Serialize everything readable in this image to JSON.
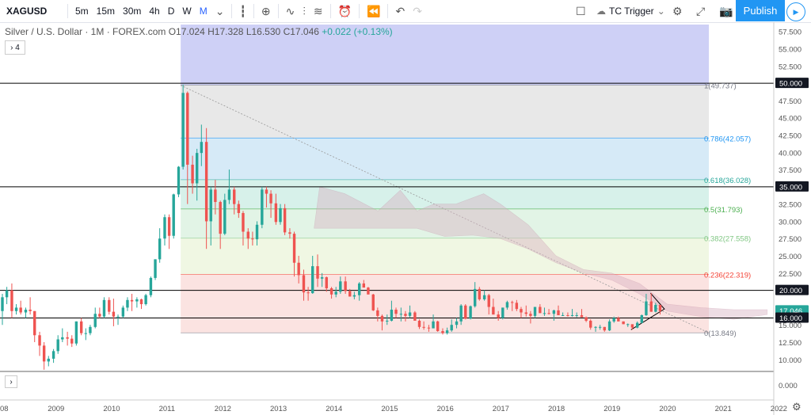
{
  "toolbar": {
    "symbol": "XAGUSD",
    "intervals": [
      "5m",
      "15m",
      "30m",
      "4h",
      "D",
      "W",
      "M"
    ],
    "active_interval": "M",
    "tc_trigger": "TC Trigger",
    "publish": "Publish"
  },
  "legend": {
    "title": "Silver / U.S. Dollar · 1M · FOREX.com",
    "o": "O17.024",
    "h": "H17.328",
    "l": "L16.530",
    "c": "C17.046",
    "change": "+0.022 (+0.13%)"
  },
  "collapse_label": "4",
  "colors": {
    "up": "#26a69a",
    "down": "#ef5350",
    "blue": "#2962ff"
  },
  "chart_data": {
    "type": "candlestick",
    "x_start_year": 2008,
    "x_ticks": [
      "08",
      "2009",
      "2010",
      "2011",
      "2012",
      "2013",
      "2014",
      "2015",
      "2016",
      "2017",
      "2018",
      "2019",
      "2020",
      "2021",
      "2022"
    ],
    "y_ticks": [
      "57.500",
      "55.000",
      "52.500",
      "50.000",
      "47.500",
      "45.000",
      "42.500",
      "40.000",
      "37.500",
      "35.000",
      "32.500",
      "30.000",
      "27.500",
      "25.000",
      "22.500",
      "20.000",
      "17.500",
      "15.000",
      "12.500",
      "10.000"
    ],
    "y_range": [
      9,
      58.5
    ],
    "price_badges": [
      {
        "label": "50.000",
        "value": 50,
        "style": "dark"
      },
      {
        "label": "35.000",
        "value": 35,
        "style": "dark"
      },
      {
        "label": "20.000",
        "value": 20,
        "style": "dark"
      },
      {
        "label": "17.046",
        "value": 17.046,
        "style": "teal"
      },
      {
        "label": "16.000",
        "value": 16,
        "style": "dark"
      }
    ],
    "horizontal_lines": [
      50,
      35,
      20,
      16
    ],
    "fibonacci": [
      {
        "label": "1(49.737)",
        "value": 49.737,
        "color": "#787b86"
      },
      {
        "label": "0.786(42.057)",
        "value": 42.057,
        "color": "#2196f3"
      },
      {
        "label": "0.618(36.028)",
        "value": 36.028,
        "color": "#26a69a"
      },
      {
        "label": "0.5(31.793)",
        "value": 31.793,
        "color": "#4caf50"
      },
      {
        "label": "0.382(27.558)",
        "value": 27.558,
        "color": "#81c784"
      },
      {
        "label": "0.236(22.319)",
        "value": 22.319,
        "color": "#f44336"
      },
      {
        "label": "0(13.849)",
        "value": 13.849,
        "color": "#787b86"
      }
    ],
    "lower_pane_label": "0.000",
    "candles": [
      [
        2008.0,
        17,
        19.5,
        15,
        19
      ],
      [
        2008.08,
        19,
        20.5,
        18,
        20
      ],
      [
        2008.17,
        20,
        21,
        16,
        17
      ],
      [
        2008.25,
        17,
        18,
        16.5,
        17.5
      ],
      [
        2008.33,
        17.5,
        18.5,
        16.5,
        16.8
      ],
      [
        2008.42,
        16.8,
        17.5,
        16,
        17.2
      ],
      [
        2008.5,
        17.2,
        19,
        16.5,
        17
      ],
      [
        2008.58,
        17,
        17,
        12.5,
        13.5
      ],
      [
        2008.67,
        13.5,
        14,
        10.5,
        12
      ],
      [
        2008.75,
        12,
        12.5,
        8.5,
        9.7
      ],
      [
        2008.83,
        9.7,
        10.5,
        9,
        10.1
      ],
      [
        2008.92,
        10.1,
        11.5,
        9.5,
        11.2
      ],
      [
        2009.0,
        11.2,
        13.5,
        10.8,
        12.9
      ],
      [
        2009.08,
        12.9,
        14.5,
        12.5,
        13.2
      ],
      [
        2009.17,
        13.2,
        14,
        12,
        13
      ],
      [
        2009.25,
        13,
        13.5,
        11.8,
        12.3
      ],
      [
        2009.33,
        12.3,
        15.5,
        12,
        15.5
      ],
      [
        2009.42,
        15.5,
        16,
        13.5,
        13.8
      ],
      [
        2009.5,
        13.8,
        14.5,
        12.8,
        13.8
      ],
      [
        2009.58,
        13.8,
        15,
        13.5,
        14.7
      ],
      [
        2009.67,
        14.7,
        17.5,
        14.5,
        16.6
      ],
      [
        2009.75,
        16.6,
        17.5,
        16,
        16.2
      ],
      [
        2009.83,
        16.2,
        19,
        16,
        18.6
      ],
      [
        2009.92,
        18.6,
        19,
        16.5,
        16.9
      ],
      [
        2010.0,
        16.9,
        18.8,
        14.8,
        16.2
      ],
      [
        2010.08,
        16.2,
        16.5,
        15,
        16.2
      ],
      [
        2010.17,
        16.2,
        17.8,
        16,
        17.5
      ],
      [
        2010.25,
        17.5,
        19,
        17,
        18.6
      ],
      [
        2010.33,
        18.6,
        19.5,
        17,
        18.4
      ],
      [
        2010.42,
        18.4,
        19,
        17.5,
        18.7
      ],
      [
        2010.5,
        18.7,
        18.8,
        17.3,
        18
      ],
      [
        2010.58,
        18,
        19.5,
        17.8,
        19.3
      ],
      [
        2010.67,
        19.3,
        22,
        19,
        21.8
      ],
      [
        2010.75,
        21.8,
        24.5,
        21.5,
        24.5
      ],
      [
        2010.83,
        24.5,
        29,
        24,
        27.5
      ],
      [
        2010.92,
        27.5,
        31,
        26.5,
        30.6
      ],
      [
        2011.0,
        30.6,
        31,
        26,
        27.9
      ],
      [
        2011.08,
        27.9,
        34,
        27.5,
        33.9
      ],
      [
        2011.17,
        33.9,
        38,
        33.5,
        37.9
      ],
      [
        2011.25,
        37.9,
        49.8,
        37.5,
        48.6
      ],
      [
        2011.33,
        48.6,
        48.8,
        32.5,
        38.2
      ],
      [
        2011.42,
        38.2,
        39.5,
        34,
        35.5
      ],
      [
        2011.5,
        35.5,
        40.5,
        33,
        39.9
      ],
      [
        2011.58,
        39.9,
        44,
        38,
        41.5
      ],
      [
        2011.67,
        41.5,
        43.5,
        26,
        30
      ],
      [
        2011.75,
        30,
        35,
        26.5,
        34.6
      ],
      [
        2011.83,
        34.6,
        36,
        31,
        32.8
      ],
      [
        2011.92,
        32.8,
        33,
        26,
        28.2
      ],
      [
        2012.0,
        28.2,
        34,
        28,
        33.1
      ],
      [
        2012.08,
        33.1,
        37.5,
        32.5,
        34.6
      ],
      [
        2012.17,
        34.6,
        35,
        31,
        32.5
      ],
      [
        2012.25,
        32.5,
        33,
        30.5,
        31.2
      ],
      [
        2012.33,
        31.2,
        31.5,
        26.5,
        28.5
      ],
      [
        2012.42,
        28.5,
        29,
        26,
        27.5
      ],
      [
        2012.5,
        27.5,
        28.5,
        26.5,
        27.4
      ],
      [
        2012.58,
        27.4,
        30,
        26.5,
        29.5
      ],
      [
        2012.67,
        29.5,
        35,
        29,
        34.6
      ],
      [
        2012.75,
        34.6,
        35,
        32,
        34
      ],
      [
        2012.83,
        34,
        34.5,
        30.5,
        32.6
      ],
      [
        2012.92,
        32.6,
        34,
        29.5,
        29.9
      ],
      [
        2013.0,
        29.9,
        32.5,
        29.5,
        31.9
      ],
      [
        2013.08,
        31.9,
        32.5,
        28,
        28.4
      ],
      [
        2013.17,
        28.4,
        29,
        27.5,
        28.2
      ],
      [
        2013.25,
        28.2,
        28.5,
        22,
        24
      ],
      [
        2013.33,
        24,
        25,
        21,
        22.2
      ],
      [
        2013.42,
        22.2,
        23,
        18.5,
        19.7
      ],
      [
        2013.5,
        19.7,
        20.5,
        18.5,
        19.6
      ],
      [
        2013.58,
        19.6,
        25,
        19.5,
        23.5
      ],
      [
        2013.67,
        23.5,
        25.2,
        20.5,
        21.7
      ],
      [
        2013.75,
        21.7,
        22.5,
        20.5,
        21.9
      ],
      [
        2013.83,
        21.9,
        22,
        19.8,
        20.3
      ],
      [
        2013.92,
        20.3,
        20.5,
        18.8,
        19.4
      ],
      [
        2014.0,
        19.4,
        20.5,
        19,
        19.8
      ],
      [
        2014.08,
        19.8,
        22,
        19.5,
        21.3
      ],
      [
        2014.17,
        21.3,
        22,
        19.5,
        19.9
      ],
      [
        2014.25,
        19.9,
        20.2,
        19.1,
        19.1
      ],
      [
        2014.33,
        19.1,
        19.8,
        18.7,
        19.3
      ],
      [
        2014.42,
        19.3,
        21.2,
        18.5,
        21
      ],
      [
        2014.5,
        21,
        21.5,
        20.5,
        20.4
      ],
      [
        2014.58,
        20.4,
        20.5,
        19.5,
        19.4
      ],
      [
        2014.67,
        19.4,
        19.5,
        17,
        17.1
      ],
      [
        2014.75,
        17.1,
        17.5,
        15.5,
        16.3
      ],
      [
        2014.83,
        16.3,
        16.5,
        14.2,
        15.5
      ],
      [
        2014.92,
        15.5,
        16.5,
        15,
        15.6
      ],
      [
        2015.0,
        15.6,
        18.5,
        15.5,
        17.2
      ],
      [
        2015.08,
        17.2,
        17.5,
        16,
        16.6
      ],
      [
        2015.17,
        16.6,
        17.5,
        15.5,
        16.6
      ],
      [
        2015.25,
        16.6,
        17,
        15.5,
        16.3
      ],
      [
        2015.33,
        16.3,
        17.8,
        16,
        16.8
      ],
      [
        2015.42,
        16.8,
        17,
        15.8,
        15.6
      ],
      [
        2015.5,
        15.6,
        15.8,
        14.4,
        14.7
      ],
      [
        2015.58,
        14.7,
        15.5,
        14.3,
        14.6
      ],
      [
        2015.67,
        14.6,
        15,
        14,
        14.5
      ],
      [
        2015.75,
        14.5,
        16.5,
        14.5,
        15.5
      ],
      [
        2015.83,
        15.5,
        15.6,
        14,
        14.1
      ],
      [
        2015.92,
        14.1,
        14.5,
        13.6,
        13.8
      ],
      [
        2016.0,
        13.8,
        14.6,
        13.6,
        14.2
      ],
      [
        2016.08,
        14.2,
        15.8,
        14,
        15
      ],
      [
        2016.17,
        15,
        16,
        14.5,
        15.5
      ],
      [
        2016.25,
        15.5,
        18,
        15,
        17.8
      ],
      [
        2016.33,
        17.8,
        18,
        15.8,
        15.9
      ],
      [
        2016.42,
        15.9,
        17.8,
        15.8,
        17.7
      ],
      [
        2016.5,
        17.7,
        21.2,
        17.5,
        20.2
      ],
      [
        2016.58,
        20.2,
        20.5,
        18.5,
        18.7
      ],
      [
        2016.67,
        18.7,
        20,
        18.5,
        19.3
      ],
      [
        2016.75,
        19.3,
        19.5,
        16.5,
        17.6
      ],
      [
        2016.83,
        17.6,
        18.8,
        16.5,
        16.5
      ],
      [
        2016.92,
        16.5,
        17,
        15.6,
        16
      ],
      [
        2017.0,
        16,
        17.5,
        15.8,
        17.5
      ],
      [
        2017.08,
        17.5,
        18.5,
        17.2,
        18.3
      ],
      [
        2017.17,
        18.3,
        18.5,
        17,
        18.2
      ],
      [
        2017.25,
        18.2,
        18.6,
        17,
        17.3
      ],
      [
        2017.33,
        17.3,
        17.6,
        16,
        16.8
      ],
      [
        2017.42,
        16.8,
        17.8,
        16.2,
        16.6
      ],
      [
        2017.5,
        16.6,
        17,
        15.2,
        16.3
      ],
      [
        2017.58,
        16.3,
        17.5,
        16,
        17.6
      ],
      [
        2017.67,
        17.6,
        18,
        16.8,
        16.7
      ],
      [
        2017.75,
        16.7,
        17.5,
        16.3,
        16.7
      ],
      [
        2017.83,
        16.7,
        17.3,
        16.5,
        16.6
      ],
      [
        2017.92,
        16.6,
        17.2,
        15.6,
        17.1
      ],
      [
        2018.0,
        17.1,
        17.8,
        16.6,
        16.4
      ],
      [
        2018.08,
        16.4,
        16.8,
        16.3,
        16.4
      ],
      [
        2018.17,
        16.4,
        16.8,
        16.2,
        16.3
      ],
      [
        2018.25,
        16.3,
        17.3,
        16.2,
        16.4
      ],
      [
        2018.33,
        16.4,
        16.8,
        16.1,
        16.4
      ],
      [
        2018.42,
        16.4,
        17.3,
        16.2,
        16.1
      ],
      [
        2018.5,
        16.1,
        16.2,
        15.4,
        15.6
      ],
      [
        2018.58,
        15.6,
        15.8,
        14.3,
        14.6
      ],
      [
        2018.67,
        14.6,
        14.8,
        14,
        14.7
      ],
      [
        2018.75,
        14.7,
        15,
        14.3,
        14.7
      ],
      [
        2018.83,
        14.7,
        14.7,
        14,
        14.2
      ],
      [
        2018.92,
        14.2,
        15.8,
        14.1,
        15.5
      ],
      [
        2019.0,
        15.5,
        16.2,
        15.3,
        16
      ],
      [
        2019.08,
        16,
        16.2,
        15.5,
        15.5
      ],
      [
        2019.17,
        15.5,
        15.5,
        15.1,
        15.1
      ],
      [
        2019.25,
        15.1,
        15.2,
        14.7,
        15.1
      ],
      [
        2019.33,
        15.1,
        15,
        14.3,
        14.6
      ],
      [
        2019.42,
        14.6,
        15.5,
        14.5,
        15.3
      ],
      [
        2019.5,
        15.3,
        16.5,
        15.2,
        16.4
      ],
      [
        2019.58,
        16.4,
        19.5,
        16.3,
        18.4
      ],
      [
        2019.67,
        18.4,
        19.6,
        16.9,
        16.9
      ],
      [
        2019.75,
        16.9,
        18.2,
        16.8,
        17.9
      ],
      [
        2019.83,
        17.9,
        17.8,
        16.5,
        17.0
      ]
    ]
  }
}
